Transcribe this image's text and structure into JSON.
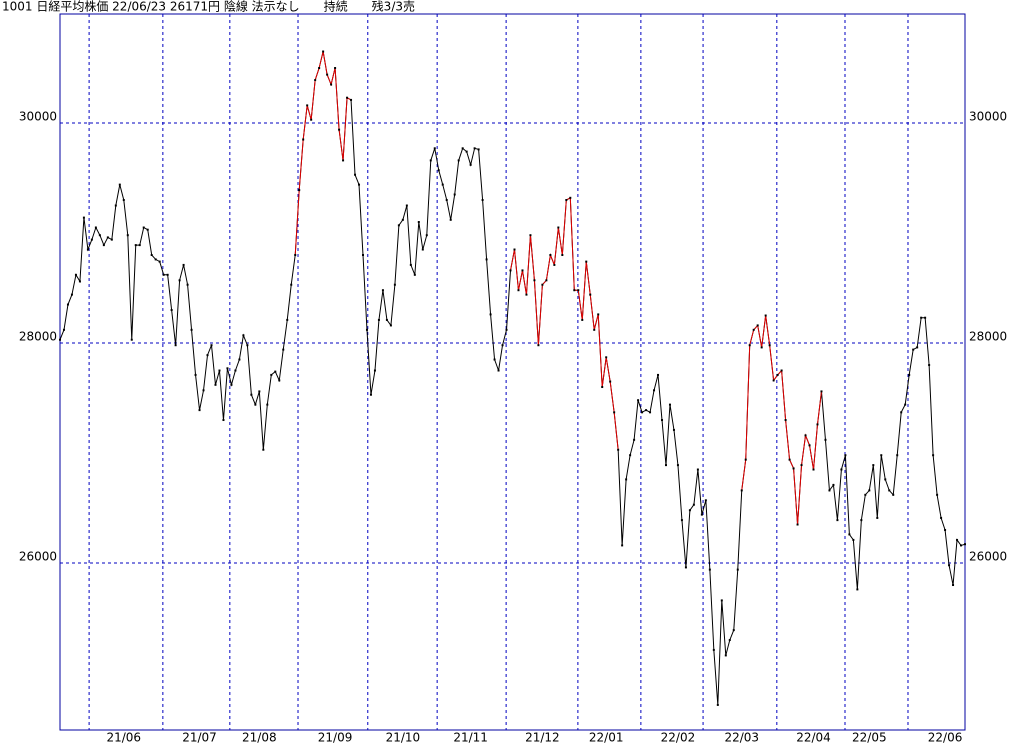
{
  "chart_data": {
    "type": "line",
    "title": "1001 日経平均株価 22/06/23 26171円 陰線 法示なし　　持続　　残3/3売",
    "categories": [
      null,
      null,
      null,
      null,
      null,
      null,
      null,
      null,
      null,
      null,
      null,
      null,
      null,
      null,
      null,
      null,
      "21/06",
      null,
      null,
      null,
      null,
      null,
      null,
      null,
      null,
      null,
      null,
      null,
      null,
      null,
      null,
      null,
      null,
      null,
      null,
      "21/07",
      null,
      null,
      null,
      null,
      null,
      null,
      null,
      null,
      null,
      null,
      null,
      null,
      null,
      null,
      "21/08",
      null,
      null,
      null,
      null,
      null,
      null,
      null,
      null,
      null,
      null,
      null,
      null,
      null,
      null,
      null,
      null,
      null,
      null,
      "21/09",
      null,
      null,
      null,
      null,
      null,
      null,
      null,
      null,
      null,
      null,
      null,
      null,
      null,
      null,
      null,
      null,
      "21/10",
      null,
      null,
      null,
      null,
      null,
      null,
      null,
      null,
      null,
      null,
      null,
      null,
      null,
      null,
      null,
      null,
      "21/11",
      null,
      null,
      null,
      null,
      null,
      null,
      null,
      null,
      null,
      null,
      null,
      null,
      null,
      null,
      null,
      null,
      null,
      "21/12",
      null,
      null,
      null,
      null,
      null,
      null,
      null,
      null,
      null,
      null,
      null,
      null,
      null,
      null,
      null,
      "22/01",
      null,
      null,
      null,
      null,
      null,
      null,
      null,
      null,
      null,
      null,
      null,
      null,
      null,
      null,
      null,
      null,
      null,
      "22/02",
      null,
      null,
      null,
      null,
      null,
      null,
      null,
      null,
      null,
      null,
      null,
      null,
      null,
      null,
      null,
      "22/03",
      null,
      null,
      null,
      null,
      null,
      null,
      null,
      null,
      null,
      null,
      null,
      null,
      null,
      null,
      null,
      null,
      null,
      "22/04",
      null,
      null,
      null,
      null,
      null,
      null,
      null,
      null,
      null,
      null,
      null,
      null,
      null,
      "22/05",
      null,
      null,
      null,
      null,
      null,
      null,
      null,
      null,
      null,
      null,
      null,
      null,
      null,
      null,
      null,
      null,
      null,
      null,
      "22/06",
      null,
      null,
      null,
      null,
      null
    ],
    "xgrid": [
      7.3,
      25.8,
      42.6,
      59.7,
      77.2,
      94.6,
      111.9,
      129.9,
      145.7,
      161.3,
      179.8,
      196.9,
      212.7
    ],
    "series": [
      {
        "color": "#000000",
        "values": [
          28030,
          28120,
          28350,
          28440,
          28620,
          28560,
          29140,
          28850,
          28940,
          29050,
          28980,
          28890,
          28960,
          28940,
          29250,
          29440,
          29300,
          28980,
          28030,
          28890,
          28890,
          29050,
          29030,
          28800,
          28760,
          28740,
          28620,
          28620,
          28300,
          27980,
          28570,
          28710,
          28530,
          28120,
          27710,
          27390,
          27570,
          27890,
          27980,
          27620,
          27750,
          27300,
          27770,
          27620,
          27750,
          27850,
          28070,
          27980,
          27530,
          27440,
          27560,
          27030,
          27440,
          27710,
          27740,
          27660,
          27940,
          28210,
          28530,
          28800,
          29390,
          29850,
          30160,
          30030,
          30390,
          30500,
          30650,
          30440,
          30350,
          30500,
          29940,
          29660,
          30230,
          30210,
          29530,
          29440,
          28800,
          28120,
          27530,
          27750,
          28210,
          28480,
          28210,
          28160,
          28530,
          29070,
          29120,
          29250,
          28710,
          28620,
          29100,
          28850,
          28980,
          29660,
          29770,
          29570,
          29440,
          29300,
          29120,
          29350,
          29660,
          29770,
          29740,
          29620,
          29770,
          29760,
          29300,
          28760,
          28260,
          27850,
          27750,
          27980,
          28120,
          28660,
          28850,
          28480,
          28660,
          28440,
          28980,
          28570,
          27980,
          28530,
          28570,
          28800,
          28710,
          29050,
          28800,
          29300,
          29320,
          28480,
          28480,
          28210,
          28740,
          28440,
          28120,
          28260,
          27600,
          27870,
          27650,
          27370,
          27030,
          26160,
          26760,
          26980,
          27120,
          27480,
          27370,
          27390,
          27370,
          27570,
          27710,
          27300,
          26890,
          27440,
          27210,
          26890,
          26390,
          25960,
          26480,
          26530,
          26850,
          26440,
          26570,
          25940,
          25210,
          24710,
          25660,
          25160,
          25300,
          25390,
          25940,
          26660,
          26940,
          27980,
          28120,
          28160,
          27960,
          28250,
          27980,
          27660,
          27710,
          27750,
          27300,
          26940,
          26860,
          26350,
          26890,
          27160,
          27070,
          26850,
          27260,
          27560,
          27120,
          26660,
          26710,
          26390,
          26850,
          26980,
          26260,
          26210,
          25760,
          26390,
          26620,
          26660,
          26890,
          26410,
          26980,
          26760,
          26660,
          26620,
          26980,
          27370,
          27440,
          27710,
          27940,
          27960,
          28230,
          28230,
          27800,
          26980,
          26620,
          26410,
          26300,
          25980,
          25800,
          26210,
          26160,
          26171
        ]
      },
      {
        "color": "#e00000",
        "values": [
          null,
          null,
          null,
          null,
          null,
          null,
          null,
          null,
          null,
          null,
          null,
          null,
          null,
          null,
          null,
          null,
          null,
          null,
          null,
          null,
          null,
          null,
          null,
          null,
          null,
          null,
          null,
          null,
          null,
          null,
          null,
          null,
          null,
          null,
          null,
          null,
          null,
          null,
          null,
          null,
          null,
          null,
          null,
          null,
          null,
          null,
          null,
          null,
          null,
          null,
          null,
          null,
          null,
          null,
          null,
          null,
          null,
          null,
          null,
          28800,
          29390,
          29850,
          30160,
          30030,
          30390,
          30500,
          30650,
          30440,
          30350,
          30500,
          29940,
          29660,
          30230,
          30210,
          null,
          null,
          null,
          null,
          null,
          null,
          null,
          null,
          null,
          null,
          null,
          null,
          null,
          null,
          null,
          null,
          null,
          null,
          null,
          null,
          null,
          null,
          null,
          null,
          null,
          null,
          null,
          null,
          null,
          null,
          null,
          null,
          null,
          null,
          null,
          null,
          null,
          null,
          null,
          28660,
          28850,
          28480,
          28660,
          28440,
          28980,
          28570,
          27980,
          28530,
          28570,
          28800,
          28710,
          29050,
          28800,
          29300,
          29320,
          28480,
          28480,
          28210,
          28740,
          28440,
          28120,
          28260,
          27600,
          27870,
          27650,
          27370,
          27030,
          null,
          null,
          null,
          null,
          null,
          null,
          null,
          null,
          null,
          null,
          null,
          null,
          null,
          null,
          null,
          null,
          null,
          null,
          null,
          null,
          null,
          null,
          null,
          null,
          null,
          null,
          null,
          null,
          null,
          null,
          26660,
          26940,
          27980,
          28120,
          28160,
          27960,
          28250,
          27980,
          27660,
          27710,
          27750,
          27300,
          26940,
          26860,
          26350,
          26890,
          27160,
          27070,
          26850,
          27260,
          27560,
          null,
          null,
          null,
          null,
          null,
          null,
          null,
          null,
          null,
          null,
          null,
          null,
          null,
          null,
          null,
          null,
          null,
          null,
          null,
          null,
          null,
          null,
          null,
          null,
          null,
          null,
          null,
          null,
          null,
          null,
          null,
          null,
          null,
          null,
          null,
          null
        ]
      }
    ],
    "ylim": [
      24482,
      30991
    ],
    "yticks": [
      26000,
      28000,
      30000
    ],
    "grid": true,
    "grid_color": "#0000c0"
  }
}
